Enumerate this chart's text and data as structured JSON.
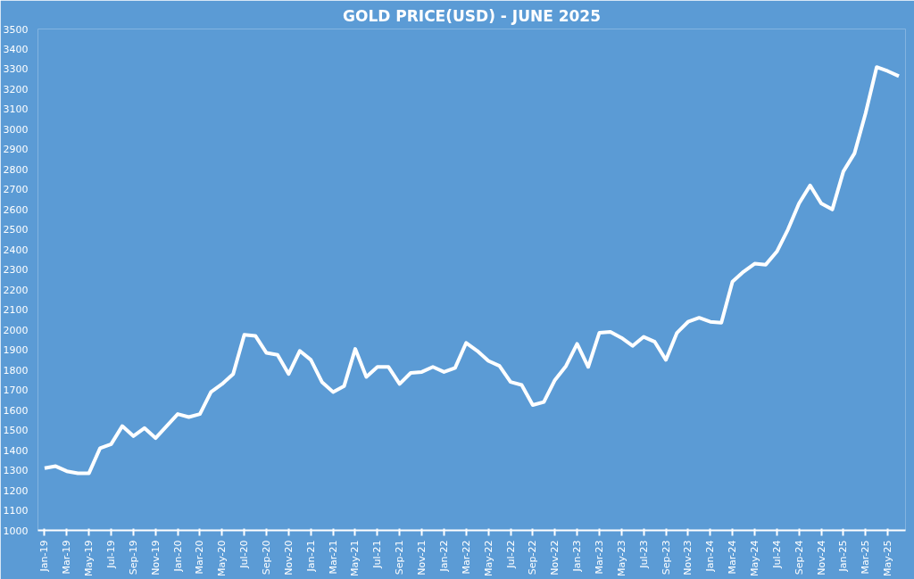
{
  "chart_data": {
    "type": "line",
    "title": "GOLD PRICE(USD) - JUNE 2025",
    "categories": [
      "Jan-19",
      null,
      "Mar-19",
      null,
      "May-19",
      null,
      "Jul-19",
      null,
      "Sep-19",
      null,
      "Nov-19",
      null,
      "Jan-20",
      null,
      "Mar-20",
      null,
      "May-20",
      null,
      "Jul-20",
      null,
      "Sep-20",
      null,
      "Nov-20",
      null,
      "Jan-21",
      null,
      "Mar-21",
      null,
      "May-21",
      null,
      "Jul-21",
      null,
      "Sep-21",
      null,
      "Nov-21",
      null,
      "Jan-22",
      null,
      "Mar-22",
      null,
      "May-22",
      null,
      "Jul-22",
      null,
      "Sep-22",
      null,
      "Nov-22",
      null,
      "Jan-23",
      null,
      "Mar-23",
      null,
      "May-23",
      null,
      "Jul-23",
      null,
      "Sep-23",
      null,
      "Nov-23",
      null,
      "Jan-24",
      null,
      "Mar-24",
      null,
      "May-24",
      null,
      "Jul-24",
      null,
      "Sep-24",
      null,
      "Nov-24",
      null,
      "Jan-25",
      null,
      "Mar-25",
      null,
      "May-25",
      null
    ],
    "series": [
      {
        "color": "#ffffff",
        "values": [
          1310,
          1320,
          1295,
          1285,
          1285,
          1410,
          1430,
          1520,
          1470,
          1510,
          1460,
          1520,
          1580,
          1565,
          1580,
          1690,
          1730,
          1780,
          1975,
          1970,
          1885,
          1875,
          1780,
          1895,
          1850,
          1740,
          1690,
          1720,
          1905,
          1765,
          1815,
          1815,
          1730,
          1785,
          1790,
          1815,
          1790,
          1810,
          1935,
          1895,
          1845,
          1820,
          1740,
          1725,
          1625,
          1640,
          1750,
          1820,
          1930,
          1815,
          1985,
          1990,
          1960,
          1920,
          1965,
          1940,
          1850,
          1985,
          2040,
          2060,
          2040,
          2035,
          2240,
          2290,
          2330,
          2325,
          2390,
          2500,
          2630,
          2720,
          2630,
          2600,
          2790,
          2880,
          3080,
          3310,
          3290,
          3265
        ]
      }
    ],
    "ylim": [
      1000,
      3500
    ],
    "yticks": [
      1000,
      1100,
      1200,
      1300,
      1400,
      1500,
      1600,
      1700,
      1800,
      1900,
      2000,
      2100,
      2200,
      2300,
      2400,
      2500,
      2600,
      2700,
      2800,
      2900,
      3000,
      3100,
      3200,
      3300,
      3400,
      3500
    ],
    "marker": "none",
    "line_style": "solid"
  }
}
